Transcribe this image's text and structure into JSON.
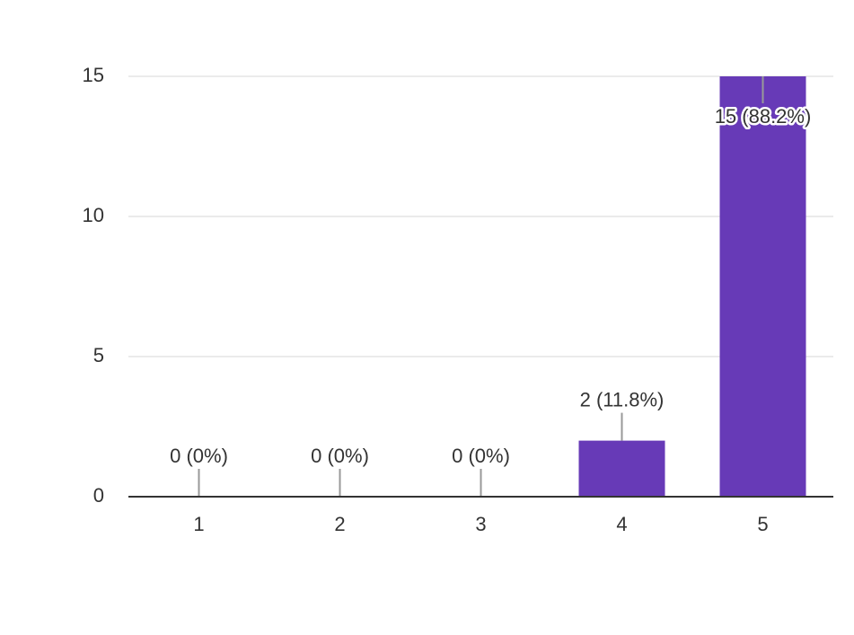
{
  "chart_data": {
    "type": "bar",
    "categories": [
      "1",
      "2",
      "3",
      "4",
      "5"
    ],
    "values": [
      0,
      0,
      0,
      2,
      15
    ],
    "value_labels": [
      "0 (0%)",
      "0 (0%)",
      "0 (0%)",
      "2 (11.8%)",
      "15 (88.2%)"
    ],
    "color": "#673ab7",
    "ylim": [
      0,
      15
    ],
    "yticks": [
      0,
      5,
      10,
      15
    ],
    "grid": true
  }
}
